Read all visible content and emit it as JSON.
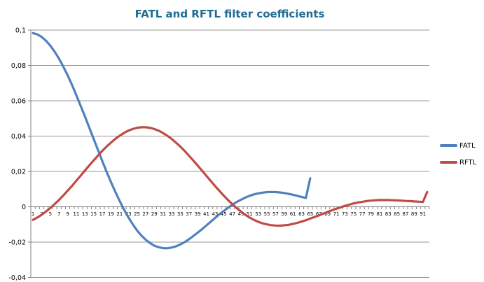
{
  "colors": {
    "title": "#1F6D93",
    "gridline": "#969696",
    "axis": "#808080",
    "tick_label": "#000000",
    "background": "#FFFFFF"
  },
  "chart_data": {
    "type": "line",
    "title": "FATL and RFTL filter coefficients",
    "xlabel": "",
    "ylabel": "",
    "grid": "horizontal-only",
    "legend_position": "right-middle",
    "decimal_separator": ",",
    "x_categories_total": 92,
    "x_labels": [
      "1",
      "3",
      "5",
      "7",
      "9",
      "11",
      "13",
      "15",
      "17",
      "19",
      "21",
      "23",
      "25",
      "27",
      "29",
      "31",
      "33",
      "35",
      "37",
      "39",
      "41",
      "43",
      "45",
      "47",
      "49",
      "51",
      "53",
      "55",
      "57",
      "59",
      "61",
      "63",
      "65",
      "67",
      "69",
      "71",
      "73",
      "75",
      "77",
      "79",
      "81",
      "83",
      "85",
      "87",
      "89",
      "91"
    ],
    "ylim": [
      -0.04,
      0.1
    ],
    "y_ticks": [
      {
        "value": 0.1,
        "label": "0,1"
      },
      {
        "value": 0.08,
        "label": "0,08"
      },
      {
        "value": 0.06,
        "label": "0,06"
      },
      {
        "value": 0.04,
        "label": "0,04"
      },
      {
        "value": 0.02,
        "label": "0,02"
      },
      {
        "value": 0,
        "label": "0"
      },
      {
        "value": -0.02,
        "label": "-0,02"
      },
      {
        "value": -0.04,
        "label": "-0,04"
      }
    ],
    "series": [
      {
        "name": "FATL",
        "color": "#4F81BD",
        "values": [
          0.0983,
          0.0976,
          0.0961,
          0.094,
          0.0912,
          0.0878,
          0.0839,
          0.0793,
          0.0744,
          0.069,
          0.0632,
          0.0572,
          0.0511,
          0.0447,
          0.0384,
          0.0321,
          0.0259,
          0.0198,
          0.014,
          0.0085,
          0.0033,
          -0.0015,
          -0.0059,
          -0.0098,
          -0.0133,
          -0.0162,
          -0.0186,
          -0.0205,
          -0.022,
          -0.0229,
          -0.0234,
          -0.0235,
          -0.0231,
          -0.0224,
          -0.0213,
          -0.02,
          -0.0184,
          -0.0166,
          -0.0147,
          -0.0127,
          -0.0106,
          -0.0085,
          -0.0064,
          -0.0043,
          -0.0024,
          -0.0006,
          0.0011,
          0.0027,
          0.004,
          0.0052,
          0.0062,
          0.007,
          0.0076,
          0.008,
          0.0083,
          0.0084,
          0.0083,
          0.0081,
          0.0078,
          0.0073,
          0.0068,
          0.0062,
          0.0056,
          0.005,
          0.0161
        ]
      },
      {
        "name": "RFTL",
        "color": "#BF4B47",
        "values": [
          -0.0074,
          -0.0061,
          -0.0045,
          -0.0027,
          -0.0007,
          0.0015,
          0.0039,
          0.0064,
          0.0091,
          0.0118,
          0.0147,
          0.0176,
          0.0205,
          0.0234,
          0.0262,
          0.029,
          0.0316,
          0.0341,
          0.0363,
          0.0384,
          0.0402,
          0.0418,
          0.0431,
          0.044,
          0.0447,
          0.045,
          0.045,
          0.0447,
          0.044,
          0.0431,
          0.0418,
          0.0402,
          0.0384,
          0.0363,
          0.0341,
          0.0316,
          0.029,
          0.0262,
          0.0234,
          0.0205,
          0.0176,
          0.0147,
          0.0118,
          0.0091,
          0.0064,
          0.0039,
          0.0015,
          -0.0007,
          -0.0027,
          -0.0045,
          -0.0061,
          -0.0074,
          -0.0085,
          -0.0094,
          -0.01,
          -0.0104,
          -0.0106,
          -0.0107,
          -0.0105,
          -0.0102,
          -0.0097,
          -0.0091,
          -0.0084,
          -0.0076,
          -0.0067,
          -0.0058,
          -0.0049,
          -0.0039,
          -0.0029,
          -0.002,
          -0.0011,
          -0.0003,
          0.0005,
          0.0012,
          0.0019,
          0.0024,
          0.0028,
          0.0032,
          0.0035,
          0.0037,
          0.0038,
          0.0038,
          0.0038,
          0.0037,
          0.0036,
          0.0035,
          0.0033,
          0.0032,
          0.003,
          0.0029,
          0.0027,
          0.0084
        ]
      }
    ]
  }
}
